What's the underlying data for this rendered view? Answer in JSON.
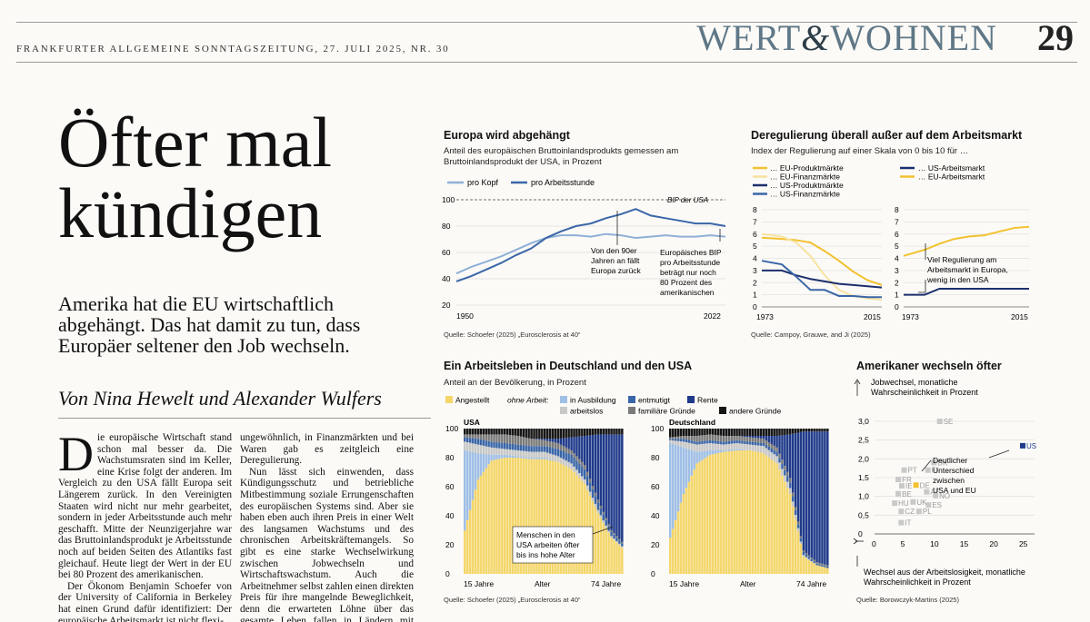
{
  "masthead": "FRANKFURTER ALLGEMEINE SONNTAGSZEITUNG, 27. JULI 2025, NR. 30",
  "section": {
    "left": "WERT",
    "amp": "&",
    "right": "WOHNEN"
  },
  "page_number": "29",
  "headline": {
    "line1": "Öfter mal",
    "line2": "kündigen"
  },
  "subheadline": "Amerika hat die EU wirtschaftlich abgehängt. Das hat damit zu tun, dass Europäer seltener den Job wechseln.",
  "byline": "Von Nina Hewelt und Alexander Wulfers",
  "article": {
    "dropcap": "D",
    "col1_p1": "ie europäische Wirtschaft stand schon mal besser da. Die Wachstumsraten sind im Keller, eine Krise folgt der anderen. Im Vergleich zu den USA fällt Europa seit Längerem zurück. In den Vereinigten Staaten wird nicht nur mehr gearbeitet, sondern in jeder Arbeitsstunde auch mehr geschafft. Mitte der Neunzigerjahre war das Bruttoinlandsprodukt je Arbeitsstunde noch auf beiden Seiten des Atlantiks fast gleichauf. Heute liegt der Wert in der EU bei 80 Prozent des amerikanischen.",
    "col1_p2": "Der Ökonom Benjamin Schoefer von der University of California in Berkeley hat einen Grund dafür identifiziert: Der europäische Arbeitsmarkt ist nicht flexi-",
    "col2_p1": "ungewöhnlich, in Finanzmärkten und bei Waren gab es zeitgleich eine Deregulierung.",
    "col2_p2": "Nun lässt sich einwenden, dass Kündigungsschutz und betriebliche Mitbestimmung soziale Errungenschaften des europäischen Systems sind. Aber sie haben eben auch ihren Preis in einer Welt des langsamen Wachstums und des chronischen Arbeitskräftemangels. So gibt es eine starke Wechselwirkung zwischen Jobwechseln und Wirtschaftswachstum. Auch die Arbeitnehmer selbst zahlen einen direkten Preis für ihre mangelnde Beweglichkeit, denn die erwarteten Löhne über das gesamte Leben fallen in Ländern mit hoher Jobmobilität ebenfalls höher aus."
  },
  "charts": {
    "europa": {
      "title": "Europa wird abgehängt",
      "subtitle_l1": "Anteil des europäischen Bruttoinlandsprodukts gemessen am",
      "subtitle_l2": "Bruttoinlandsprodukt der USA, in Prozent",
      "legend": [
        "pro Kopf",
        "pro Arbeitsstunde"
      ],
      "ref_label": "BIP der USA",
      "ann1": [
        "Von den 90er",
        "Jahren an fällt",
        "Europa zurück"
      ],
      "ann2": [
        "Europäisches BIP",
        "pro Arbeitsstunde",
        "beträgt nur noch",
        "80 Prozent des",
        "amerikanischen"
      ],
      "ticks_y": [
        "100",
        "80",
        "60",
        "40",
        "20"
      ],
      "ticks_x": [
        "1950",
        "2022"
      ],
      "source": "Quelle: Schoefer (2025) „Eurosclerosis at 40“",
      "colors": {
        "pro_kopf": "#8fb0d6",
        "pro_arbeitsstunde": "#3a66a8"
      }
    },
    "dereg": {
      "title": "Deregulierung überall außer auf dem Arbeitsmarkt",
      "subtitle": "Index der Regulierung auf einer Skala von 0 bis 10 für …",
      "legend_left": [
        "… EU-Produktmärkte",
        "… EU-Finanzmärkte",
        "… US-Produktmärkte",
        "… US-Finanzmärkte"
      ],
      "legend_right": [
        "… US-Arbeitsmarkt",
        "… EU-Arbeitsmarkt"
      ],
      "ticks_y": [
        "8",
        "7",
        "6",
        "5",
        "4",
        "3",
        "2",
        "1",
        "0"
      ],
      "ticks_x": [
        "1973",
        "2015"
      ],
      "ann": [
        "Viel Regulierung am",
        "Arbeitsmarkt in Europa,",
        "wenig in den USA"
      ],
      "source": "Quelle: Campoy, Grauwe, and Ji (2025)",
      "colors": {
        "eu_produkt": "#f2c12e",
        "eu_finanz": "#f7e3a1",
        "us_produkt": "#1c2f6e",
        "us_finanz": "#3a66a8"
      }
    },
    "arbeitsleben": {
      "title": "Ein Arbeitsleben in Deutschland und den USA",
      "subtitle": "Anteil an der Bevölkerung, in Prozent",
      "legend": {
        "angestellt": "Angestellt",
        "ohne_arbeit": "ohne Arbeit:",
        "in_ausbildung": "in Ausbildung",
        "entmutigt": "entmutigt",
        "rente": "Rente",
        "arbeitslos": "arbeitslos",
        "familiaere": "familiäre Gründe",
        "andere": "andere Gründe"
      },
      "usa_label": "USA",
      "de_label": "Deutschland",
      "ticks_y": [
        "100",
        "80",
        "60",
        "40",
        "20",
        "0"
      ],
      "ticks_x": [
        "15 Jahre",
        "Alter",
        "74 Jahre"
      ],
      "ann": [
        "Menschen in den",
        "USA arbeiten öfter",
        "bis ins hohe Alter"
      ],
      "source": "Quelle: Schoefer (2025) „Eurosclerosis at 40“",
      "colors": {
        "angestellt": "#f4d66a",
        "in_ausbildung": "#9fbfe6",
        "arbeitslos": "#c8c8c8",
        "entmutigt": "#3a66a8",
        "familiaere": "#7a7a7a",
        "rente": "#1f3a8a",
        "andere": "#151515"
      }
    },
    "amerikaner": {
      "title": "Amerikaner wechseln öfter",
      "ylabel_l1": "Jobwechsel, monatliche",
      "ylabel_l2": "Wahrscheinlichkeit in Prozent",
      "xlabel_l1": "Wechsel aus der Arbeitslosigkeit, monatliche",
      "xlabel_l2": "Wahrscheinlichkeit in Prozent",
      "ticks_y": [
        "3,0",
        "2,5",
        "2,0",
        "1,5",
        "1,0",
        "0,5",
        "0"
      ],
      "ticks_x": [
        "5",
        "10",
        "15",
        "20",
        "25"
      ],
      "ann": [
        "Deutlicher",
        "Unterschied",
        "zwischen",
        "USA und EU"
      ],
      "source": "Quelle: Borowczyk-Martins (2025)",
      "colors": {
        "eu": "#c9c9c9",
        "de": "#f2c12e",
        "us": "#1f3a8a"
      }
    }
  },
  "chart_data": [
    {
      "type": "line",
      "title": "Europa wird abgehängt",
      "x": [
        1950,
        1954,
        1958,
        1962,
        1966,
        1970,
        1974,
        1978,
        1982,
        1986,
        1990,
        1994,
        1998,
        2002,
        2006,
        2010,
        2014,
        2018,
        2022
      ],
      "series": [
        {
          "name": "pro Kopf",
          "values": [
            44,
            49,
            53,
            57,
            62,
            67,
            71,
            73,
            73,
            72,
            74,
            73,
            71,
            72,
            73,
            72,
            72,
            73,
            72
          ]
        },
        {
          "name": "pro Arbeitsstunde",
          "values": [
            38,
            42,
            47,
            52,
            58,
            63,
            71,
            76,
            80,
            82,
            86,
            89,
            93,
            88,
            86,
            84,
            82,
            82,
            80
          ]
        }
      ],
      "ylim": [
        20,
        100
      ]
    },
    {
      "type": "line",
      "title": "Deregulierung überall außer auf dem Arbeitsmarkt",
      "x": [
        1973,
        1980,
        1985,
        1990,
        1995,
        2000,
        2005,
        2010,
        2015
      ],
      "series": [
        {
          "name": "… EU-Produktmärkte",
          "values": [
            5.7,
            5.6,
            5.5,
            5.3,
            4.6,
            3.8,
            2.9,
            2.2,
            1.8
          ]
        },
        {
          "name": "… EU-Finanzmärkte",
          "values": [
            6.0,
            5.8,
            5.3,
            4.2,
            2.6,
            1.4,
            0.9,
            0.7,
            0.6
          ]
        },
        {
          "name": "… US-Produktmärkte",
          "values": [
            3.0,
            3.0,
            2.6,
            2.3,
            2.1,
            1.9,
            1.8,
            1.7,
            1.6
          ]
        },
        {
          "name": "… US-Finanzmärkte",
          "values": [
            3.8,
            3.5,
            2.5,
            1.4,
            1.4,
            0.9,
            0.9,
            0.8,
            0.8
          ]
        },
        {
          "name": "… EU-Arbeitsmarkt",
          "values": [
            4.2,
            4.7,
            5.2,
            5.6,
            5.8,
            5.9,
            6.2,
            6.5,
            6.6
          ]
        },
        {
          "name": "… US-Arbeitsmarkt",
          "values": [
            1.0,
            1.0,
            1.5,
            1.5,
            1.5,
            1.5,
            1.5,
            1.5,
            1.5
          ]
        }
      ],
      "ylim": [
        0,
        8
      ]
    },
    {
      "type": "area",
      "title": "Ein Arbeitsleben in Deutschland und den USA",
      "panels": [
        {
          "name": "USA",
          "x": [
            15,
            20,
            25,
            30,
            35,
            40,
            45,
            50,
            55,
            60,
            65,
            70,
            74
          ],
          "series": [
            {
              "name": "Angestellt",
              "values": [
                30,
                65,
                78,
                80,
                80,
                79,
                79,
                77,
                72,
                62,
                42,
                25,
                18
              ]
            },
            {
              "name": "in Ausbildung",
              "values": [
                55,
                18,
                4,
                2,
                1,
                1,
                1,
                0,
                0,
                0,
                0,
                0,
                0
              ]
            },
            {
              "name": "arbeitslos",
              "values": [
                6,
                6,
                5,
                4,
                4,
                4,
                4,
                4,
                4,
                3,
                2,
                1,
                1
              ]
            },
            {
              "name": "entmutigt",
              "values": [
                3,
                4,
                4,
                4,
                4,
                4,
                4,
                5,
                6,
                7,
                5,
                3,
                2
              ]
            },
            {
              "name": "familiäre Gründe",
              "values": [
                2,
                3,
                5,
                6,
                6,
                5,
                4,
                4,
                3,
                3,
                2,
                1,
                1
              ]
            },
            {
              "name": "Rente",
              "values": [
                0,
                0,
                0,
                0,
                0,
                0,
                1,
                3,
                9,
                20,
                45,
                66,
                74
              ]
            },
            {
              "name": "andere Gründe",
              "values": [
                4,
                4,
                4,
                4,
                5,
                7,
                7,
                7,
                6,
                5,
                4,
                4,
                4
              ]
            }
          ]
        },
        {
          "name": "Deutschland",
          "x": [
            15,
            20,
            25,
            30,
            35,
            40,
            45,
            50,
            55,
            60,
            65,
            70,
            74
          ],
          "series": [
            {
              "name": "Angestellt",
              "values": [
                25,
                55,
                76,
                82,
                84,
                85,
                85,
                83,
                76,
                55,
                12,
                6,
                4
              ]
            },
            {
              "name": "in Ausbildung",
              "values": [
                65,
                32,
                8,
                3,
                1,
                1,
                0,
                0,
                0,
                0,
                0,
                0,
                0
              ]
            },
            {
              "name": "arbeitslos",
              "values": [
                2,
                4,
                5,
                5,
                4,
                4,
                4,
                5,
                5,
                4,
                1,
                0,
                0
              ]
            },
            {
              "name": "entmutigt",
              "values": [
                1,
                2,
                2,
                2,
                2,
                2,
                2,
                2,
                3,
                4,
                2,
                1,
                1
              ]
            },
            {
              "name": "familiäre Gründe",
              "values": [
                1,
                2,
                4,
                4,
                4,
                3,
                3,
                3,
                3,
                3,
                1,
                1,
                1
              ]
            },
            {
              "name": "Rente",
              "values": [
                0,
                0,
                0,
                0,
                0,
                0,
                1,
                2,
                8,
                30,
                82,
                90,
                92
              ]
            },
            {
              "name": "andere Gründe",
              "values": [
                6,
                5,
                5,
                4,
                5,
                5,
                5,
                5,
                5,
                4,
                2,
                2,
                2
              ]
            }
          ]
        }
      ],
      "ylim": [
        0,
        100
      ]
    },
    {
      "type": "scatter",
      "title": "Amerikaner wechseln öfter",
      "points": [
        {
          "label": "SE",
          "x": 11,
          "y": 3.0
        },
        {
          "label": "US",
          "x": 25,
          "y": 2.35
        },
        {
          "label": "DK",
          "x": 10,
          "y": 1.9
        },
        {
          "label": "PT",
          "x": 5,
          "y": 1.7
        },
        {
          "label": "FI",
          "x": 9,
          "y": 1.7
        },
        {
          "label": "FR",
          "x": 4,
          "y": 1.45
        },
        {
          "label": "IE",
          "x": 4.6,
          "y": 1.28
        },
        {
          "label": "DE",
          "x": 7,
          "y": 1.3
        },
        {
          "label": "BE",
          "x": 4,
          "y": 1.07
        },
        {
          "label": "AT",
          "x": 8.8,
          "y": 1.12
        },
        {
          "label": "NO",
          "x": 10.3,
          "y": 1.02
        },
        {
          "label": "UK",
          "x": 6.5,
          "y": 0.85
        },
        {
          "label": "HU",
          "x": 3.4,
          "y": 0.82
        },
        {
          "label": "ES",
          "x": 9.1,
          "y": 0.77
        },
        {
          "label": "CZ",
          "x": 4.5,
          "y": 0.6
        },
        {
          "label": "PL",
          "x": 7.5,
          "y": 0.6
        },
        {
          "label": "IT",
          "x": 4.5,
          "y": 0.3
        }
      ],
      "xlim": [
        0,
        27
      ],
      "ylim": [
        0,
        3.0
      ]
    }
  ]
}
